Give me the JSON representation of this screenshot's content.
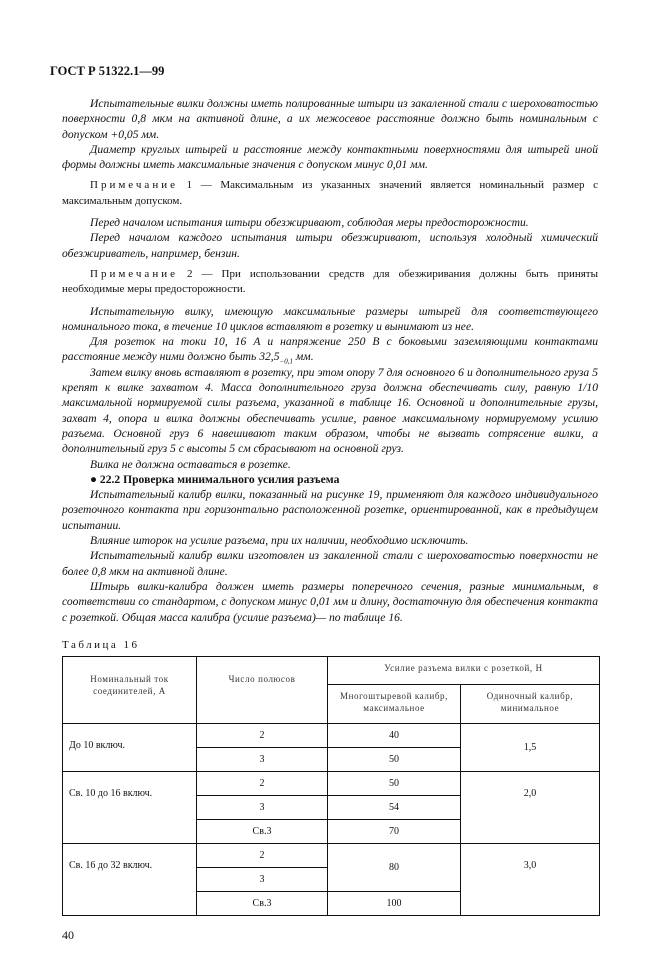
{
  "header": "ГОСТ Р 51322.1—99",
  "paragraphs": [
    "Испытательные вилки должны иметь полированные штыри из закаленной стали с шероховатостью поверхности 0,8 мкм на активной длине, а их межосевое расстояние должно быть номинальным с допуском +0,05 мм.",
    "Диаметр круглых штырей и расстояние между контактными поверхностями для штырей иной формы должны иметь максимальные значения с допуском минус 0,01 мм.",
    "Перед началом испытания штыри обезжиривают, соблюдая меры предосторожности.",
    "Перед началом каждого испытания штыри обезжиривают, используя холодный химический обезжириватель, например, бензин.",
    "Испытательную вилку, имеющую максимальные размеры штырей для соответствующего номинального тока, в течение 10 циклов вставляют в розетку и вынимают из нее.",
    "Для розеток на токи 10, 16 А и напряжение 250 В с боковыми заземляющими контактами расстояние между ними должно быть 32,5",
    "Затем вилку вновь вставляют в розетку, при этом опору 7 для основного 6 и дополнительного груза 5 крепят к вилке захватом 4. Масса дополнительного груза должна обеспечивать силу, равную 1/10 максимальной нормируемой силы разъема, указанной в таблице 16. Основной и дополнительные грузы, захват 4, опора и вилка должны обеспечивать усилие, равное максимальному нормируемому усилию разъема. Основной груз 6 навешивают таким образом, чтобы не вызвать сотрясение вилки, а дополнительный груз 5 с высоты 5 см сбрасывают на основной груз.",
    "Вилка не должна оставаться в розетке.",
    "Испытательный калибр вилки, показанный на рисунке 19, применяют для каждого индивидуального розеточного контакта при горизонтально расположенной розетке, ориентированной, как в предыдущем испытании.",
    "Влияние шторок на усилие разъема, при их наличии, необходимо исключить.",
    "Испытательный калибр вилки изготовлен из закаленной стали с шероховатостью поверхности не более 0,8 мкм на активной длине.",
    "Штырь вилки-калибра должен иметь размеры поперечного сечения, разные минимальным, в соответствии со стандартом, с допуском минус 0,01 мм и длину, достаточную для обеспечения контакта с розеткой. Общая масса калибра (усилие разъема)— по таблице 16."
  ],
  "tolerance_sub": "−0,1",
  "tolerance_unit": " мм.",
  "notes": [
    {
      "label": "Примечание",
      "text": " 1 — Максимальным из указанных значений является номинальный размер с максимальным допуском."
    },
    {
      "label": "Примечание",
      "text": "  2 — При использовании средств для обезжиривания должны быть приняты необходимые меры предосторожности."
    }
  ],
  "section_heading": "● 22.2 Проверка минимального усилия разъема",
  "table": {
    "caption": "Таблица 16",
    "headers": {
      "current": "Номинальный ток соединителей, А",
      "poles": "Число полюсов",
      "force": "Усилие разъема вилки с розеткой, Н",
      "multi": "Многоштыревой калибр, максимальное",
      "single": "Одиночный калибр, минимальное"
    },
    "groups": [
      {
        "current": "До 10 включ.",
        "single": "1,5",
        "rows": [
          {
            "poles": "2",
            "multi": "40"
          },
          {
            "poles": "3",
            "multi": "50"
          }
        ]
      },
      {
        "current": "Св. 10 до 16 включ.",
        "single": "2,0",
        "rows": [
          {
            "poles": "2",
            "multi": "50"
          },
          {
            "poles": "3",
            "multi": "54"
          },
          {
            "poles": "Св.3",
            "multi": "70"
          }
        ]
      },
      {
        "current": "Св. 16 до 32 включ.",
        "single": "3,0",
        "rows": [
          {
            "poles": "2",
            "multi": "80"
          },
          {
            "poles": "3",
            "multi": ""
          },
          {
            "poles": "Св.3",
            "multi": "100"
          }
        ]
      }
    ]
  },
  "page_number": "40"
}
